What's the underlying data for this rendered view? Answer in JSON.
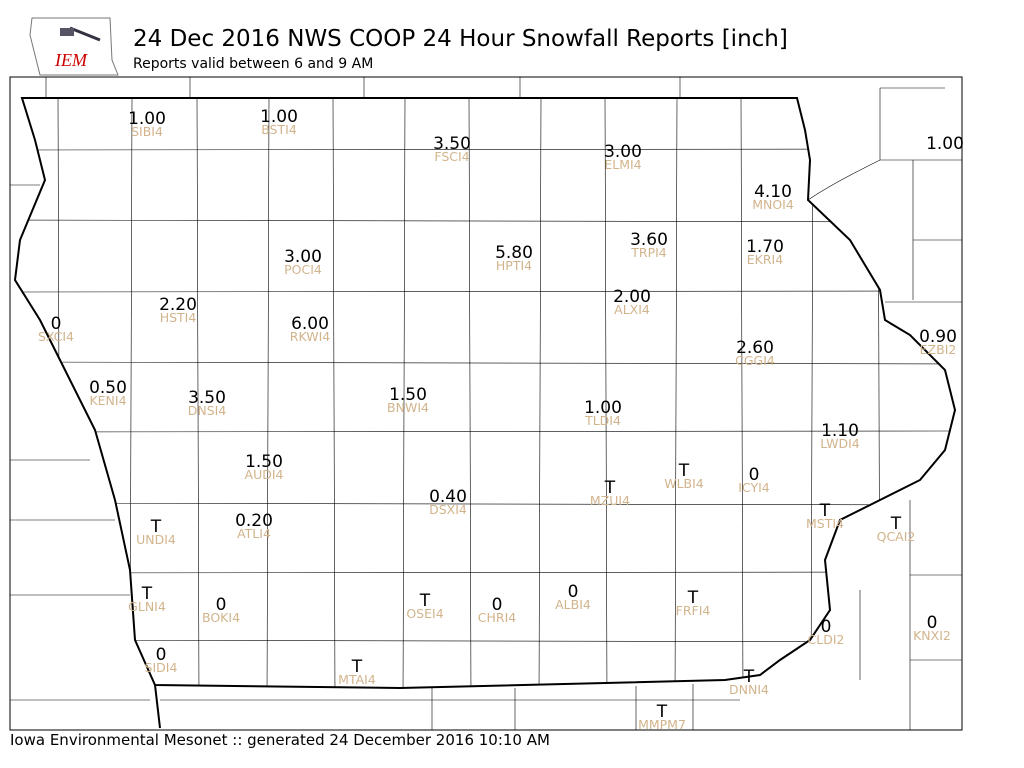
{
  "logo": "IEM",
  "title": "24 Dec 2016 NWS COOP 24 Hour Snowfall Reports [inch]",
  "subtitle": "Reports valid between 6 and 9 AM",
  "footer": "Iowa Environmental Mesonet :: generated 24 December 2016 10:10 AM",
  "stations": [
    {
      "value": "1.00",
      "id": "SIBI4"
    },
    {
      "value": "1.00",
      "id": "BSTI4"
    },
    {
      "value": "3.50",
      "id": "FSCI4"
    },
    {
      "value": "3.00",
      "id": "ELMI4"
    },
    {
      "value": "4.10",
      "id": "MNOI4"
    },
    {
      "value": "1.00"
    },
    {
      "value": "3.00",
      "id": "POCI4"
    },
    {
      "value": "5.80",
      "id": "HPTI4"
    },
    {
      "value": "3.60",
      "id": "TRPI4"
    },
    {
      "value": "1.70",
      "id": "EKRI4"
    },
    {
      "value": "2.20",
      "id": "HSTI4"
    },
    {
      "value": "6.00",
      "id": "RKWI4"
    },
    {
      "value": "2.00",
      "id": "ALXI4"
    },
    {
      "value": "0",
      "id": "SXCI4"
    },
    {
      "value": "0.90",
      "id": "EZBI2"
    },
    {
      "value": "2.60",
      "id": "CGGI4"
    },
    {
      "value": "0.50",
      "id": "KENI4"
    },
    {
      "value": "3.50",
      "id": "DNSI4"
    },
    {
      "value": "1.50",
      "id": "BNWI4"
    },
    {
      "value": "1.00",
      "id": "TLDI4"
    },
    {
      "value": "1.10",
      "id": "LWDI4"
    },
    {
      "value": "1.50",
      "id": "AUDI4"
    },
    {
      "value": "T",
      "id": "WLBI4"
    },
    {
      "value": "0",
      "id": "ICYI4"
    },
    {
      "value": "T",
      "id": "MZUI4"
    },
    {
      "value": "0.40",
      "id": "DSXI4"
    },
    {
      "value": "T",
      "id": "MSTI4"
    },
    {
      "value": "T",
      "id": "QCAI2"
    },
    {
      "value": "T",
      "id": "UNDI4"
    },
    {
      "value": "0.20",
      "id": "ATLI4"
    },
    {
      "value": "T",
      "id": "GLNI4"
    },
    {
      "value": "0",
      "id": "BOKI4"
    },
    {
      "value": "T",
      "id": "OSEI4"
    },
    {
      "value": "0",
      "id": "CHRI4"
    },
    {
      "value": "0",
      "id": "ALBI4"
    },
    {
      "value": "T",
      "id": "FRFI4"
    },
    {
      "value": "0",
      "id": "CLDI2"
    },
    {
      "value": "0",
      "id": "KNXI2"
    },
    {
      "value": "0",
      "id": "SIDI4"
    },
    {
      "value": "T",
      "id": "MTAI4"
    },
    {
      "value": "T",
      "id": "DNNI4"
    },
    {
      "value": "T",
      "id": "MMPM7"
    }
  ]
}
